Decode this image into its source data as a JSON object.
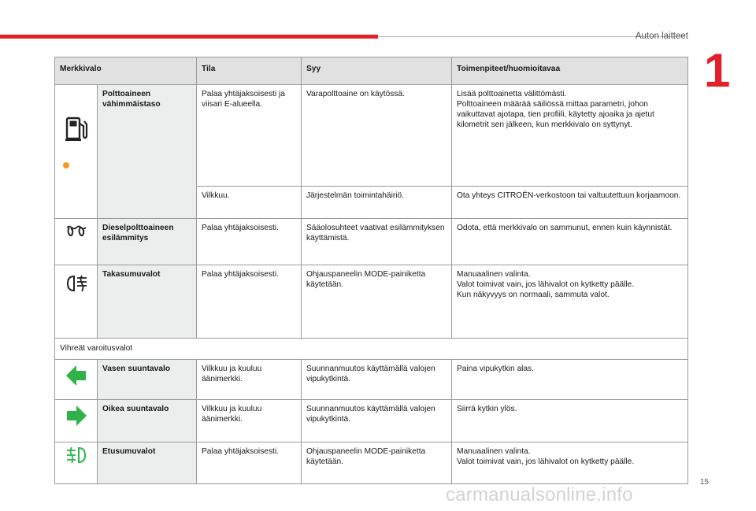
{
  "header": {
    "section_title": "Auton laitteet",
    "chapter_number": "1"
  },
  "footer": {
    "page_number": "15",
    "watermark": "carmanualsonline.info"
  },
  "colors": {
    "accent_red": "#e3202a",
    "warning_orange": "#f39a1d",
    "indicator_green": "#2fb24a"
  },
  "table": {
    "columns": [
      "Merkkivalo",
      "Tila",
      "Syy",
      "Toimenpiteet/huomioitavaa"
    ],
    "rows": [
      {
        "icon": "fuel-pump-icon",
        "name": "Polttoaineen vähimmäistaso",
        "state": "Palaa yhtäjaksoisesti ja viisari E-alueella.",
        "cause": "Varapolttoaine on käytössä.",
        "action": [
          "Lisää polttoainetta välittömästi.",
          "Polttoaineen määrää säiliössä mittaa parametri, johon vaikuttavat ajotapa, tien profiili, käytetty ajoaika ja ajetut kilometrit sen jälkeen, kun merkkivalo on syttynyt."
        ]
      },
      {
        "state": "Vilkkuu.",
        "cause": "Järjestelmän toimintahäiriö.",
        "action": [
          "Ota yhteys CITROËN-verkostoon tai valtuutettuun korjaamoon."
        ]
      },
      {
        "icon": "glow-plug-icon",
        "name": "Dieselpolttoaineen esilämmitys",
        "state": "Palaa yhtäjaksoisesti.",
        "cause": "Sääolosuhteet vaativat esilämmityksen käyttämistä.",
        "action": [
          "Odota, että merkkivalo on sammunut, ennen kuin käynnistät."
        ]
      },
      {
        "icon": "rear-fog-light-icon",
        "name": "Takasumuvalot",
        "state": "Palaa yhtäjaksoisesti.",
        "cause": "Ohjauspaneelin MODE-painiketta käytetään.",
        "action": [
          "Manuaalinen valinta.",
          "Valot toimivat vain, jos lähivalot on kytketty päälle.",
          "Kun näkyvyys on normaali, sammuta valot."
        ]
      }
    ],
    "section_label": "Vihreät varoitusvalot",
    "green_rows": [
      {
        "icon": "left-arrow-icon",
        "name": "Vasen suuntavalo",
        "state": "Vilkkuu ja kuuluu äänimerkki.",
        "cause": "Suunnanmuutos käyttämällä valojen vipukytkintä.",
        "action": [
          "Paina vipukytkin alas."
        ]
      },
      {
        "icon": "right-arrow-icon",
        "name": "Oikea suuntavalo",
        "state": "Vilkkuu ja kuuluu äänimerkki.",
        "cause": "Suunnanmuutos käyttämällä valojen vipukytkintä.",
        "action": [
          "Siirrä kytkin ylös."
        ]
      },
      {
        "icon": "front-fog-light-icon",
        "name": "Etusumuvalot",
        "state": "Palaa yhtäjaksoisesti.",
        "cause": "Ohjauspaneelin MODE-painiketta käytetään.",
        "action": [
          "Manuaalinen valinta.",
          "Valot toimivat vain, jos lähivalot on kytketty päälle."
        ]
      }
    ]
  }
}
